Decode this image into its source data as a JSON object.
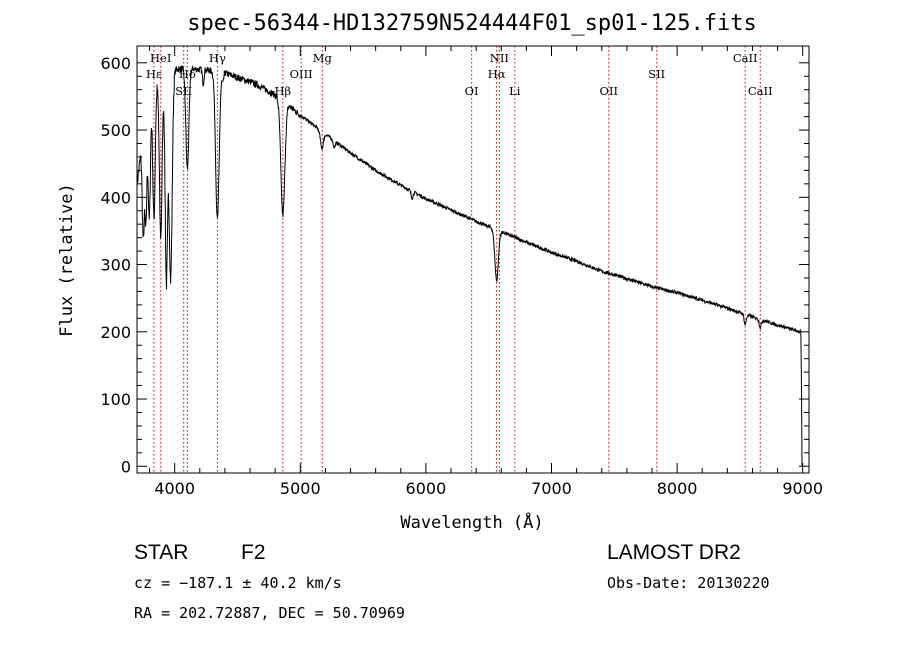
{
  "chart_data": {
    "type": "line",
    "title": "spec-56344-HD132759N524444F01_sp01-125.fits",
    "xlabel": "Wavelength (Å)",
    "ylabel": "Flux (relative)",
    "xlim": [
      3700,
      9050
    ],
    "ylim": [
      -10,
      625
    ],
    "x_ticks": [
      4000,
      5000,
      6000,
      7000,
      8000,
      9000
    ],
    "y_ticks": [
      0,
      100,
      200,
      300,
      400,
      500,
      600
    ],
    "grid": false,
    "series": [
      {
        "continuum": [
          [
            3700,
            420
          ],
          [
            3800,
            560
          ],
          [
            3900,
            585
          ],
          [
            4000,
            590
          ],
          [
            4100,
            592
          ],
          [
            4200,
            590
          ],
          [
            4300,
            588
          ],
          [
            4400,
            585
          ],
          [
            4500,
            578
          ],
          [
            4600,
            572
          ],
          [
            4700,
            563
          ],
          [
            4800,
            552
          ],
          [
            4900,
            538
          ],
          [
            5000,
            522
          ],
          [
            5100,
            508
          ],
          [
            5200,
            494
          ],
          [
            5300,
            480
          ],
          [
            5400,
            466
          ],
          [
            5500,
            453
          ],
          [
            5600,
            440
          ],
          [
            5800,
            418
          ],
          [
            6000,
            398
          ],
          [
            6200,
            381
          ],
          [
            6400,
            364
          ],
          [
            6600,
            349
          ],
          [
            6800,
            333
          ],
          [
            7000,
            318
          ],
          [
            7200,
            305
          ],
          [
            7400,
            290
          ],
          [
            7600,
            279
          ],
          [
            7800,
            267
          ],
          [
            8000,
            258
          ],
          [
            8200,
            247
          ],
          [
            8400,
            235
          ],
          [
            8600,
            222
          ],
          [
            8800,
            210
          ],
          [
            8980,
            200
          ]
        ],
        "absorption_lines": [
          {
            "wavelength": 3750,
            "depth": 150,
            "width": 8
          },
          {
            "wavelength": 3771,
            "depth": 160,
            "width": 8
          },
          {
            "wavelength": 3798,
            "depth": 190,
            "width": 9
          },
          {
            "wavelength": 3835,
            "depth": 200,
            "width": 10
          },
          {
            "wavelength": 3889,
            "depth": 240,
            "width": 11
          },
          {
            "wavelength": 3934,
            "depth": 310,
            "width": 10
          },
          {
            "wavelength": 3968,
            "depth": 310,
            "width": 12
          },
          {
            "wavelength": 4101,
            "depth": 150,
            "width": 12
          },
          {
            "wavelength": 4227,
            "depth": 20,
            "width": 6
          },
          {
            "wavelength": 4340,
            "depth": 220,
            "width": 14
          },
          {
            "wavelength": 4384,
            "depth": 15,
            "width": 6
          },
          {
            "wavelength": 4861,
            "depth": 170,
            "width": 16
          },
          {
            "wavelength": 5172,
            "depth": 25,
            "width": 12
          },
          {
            "wavelength": 5270,
            "depth": 10,
            "width": 8
          },
          {
            "wavelength": 5890,
            "depth": 10,
            "width": 8
          },
          {
            "wavelength": 6563,
            "depth": 75,
            "width": 14
          },
          {
            "wavelength": 8542,
            "depth": 15,
            "width": 8
          },
          {
            "wavelength": 8662,
            "depth": 12,
            "width": 8
          }
        ]
      }
    ],
    "line_markers": [
      {
        "wavelength": 3835,
        "label": "Hε",
        "row": 2
      },
      {
        "wavelength": 3889,
        "label": "HeI",
        "row": 1
      },
      {
        "wavelength": 4072,
        "label": "SII",
        "row": 3
      },
      {
        "wavelength": 4101,
        "label": "Hδ",
        "row": 2
      },
      {
        "wavelength": 4340,
        "label": "Hγ",
        "row": 1
      },
      {
        "wavelength": 4861,
        "label": "Hβ",
        "row": 3
      },
      {
        "wavelength": 5007,
        "label": "OIII",
        "row": 2
      },
      {
        "wavelength": 5175,
        "label": "Mg",
        "row": 1
      },
      {
        "wavelength": 6364,
        "label": "OI",
        "row": 3
      },
      {
        "wavelength": 6563,
        "label": "Hα",
        "row": 2
      },
      {
        "wavelength": 6585,
        "label": "NII",
        "row": 1
      },
      {
        "wavelength": 6708,
        "label": "Li",
        "row": 3
      },
      {
        "wavelength": 7456,
        "label": "OII",
        "row": 3
      },
      {
        "wavelength": 7838,
        "label": "SII",
        "row": 2
      },
      {
        "wavelength": 8542,
        "label": "CaII",
        "row": 1
      },
      {
        "wavelength": 8662,
        "label": "CaII",
        "row": 3
      }
    ],
    "colors": {
      "spectrum": "#000000",
      "line_markers": "#cc0000"
    }
  },
  "info": {
    "object_type": "STAR",
    "subclass": "F2",
    "survey": "LAMOST DR2",
    "redshift": "cz = −187.1 ± 40.2 km/s",
    "obs_date": "Obs-Date: 20130220",
    "coords": "RA = 202.72887, DEC =  50.70969"
  }
}
